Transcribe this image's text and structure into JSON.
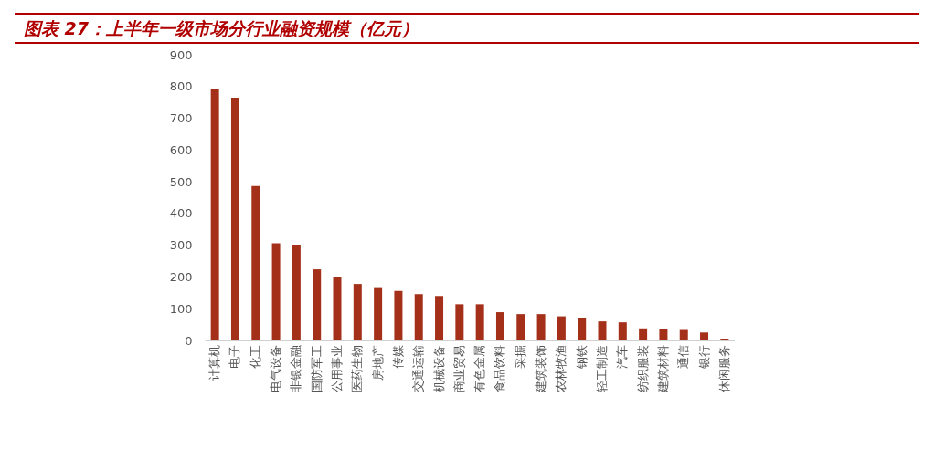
{
  "chart_data": {
    "type": "bar",
    "title": "图表 27：上半年一级市场分行业融资规模（亿元）",
    "categories": [
      "计算机",
      "电子",
      "化工",
      "电气设备",
      "非银金融",
      "国防军工",
      "公用事业",
      "医药生物",
      "房地产",
      "传媒",
      "交通运输",
      "机械设备",
      "商业贸易",
      "有色金属",
      "食品饮料",
      "采掘",
      "建筑装饰",
      "农林牧渔",
      "钢铁",
      "轻工制造",
      "汽车",
      "纺织服装",
      "建筑材料",
      "通信",
      "银行",
      "休闲服务"
    ],
    "values": [
      792,
      765,
      487,
      306,
      300,
      224,
      199,
      178,
      165,
      156,
      146,
      140,
      114,
      114,
      89,
      83,
      83,
      76,
      70,
      60,
      57,
      38,
      35,
      33,
      25,
      4
    ],
    "color": "#a5301a",
    "ylim": [
      0,
      900
    ],
    "yticks": [
      0,
      100,
      200,
      300,
      400,
      500,
      600,
      700,
      800,
      900
    ],
    "grid": false
  }
}
